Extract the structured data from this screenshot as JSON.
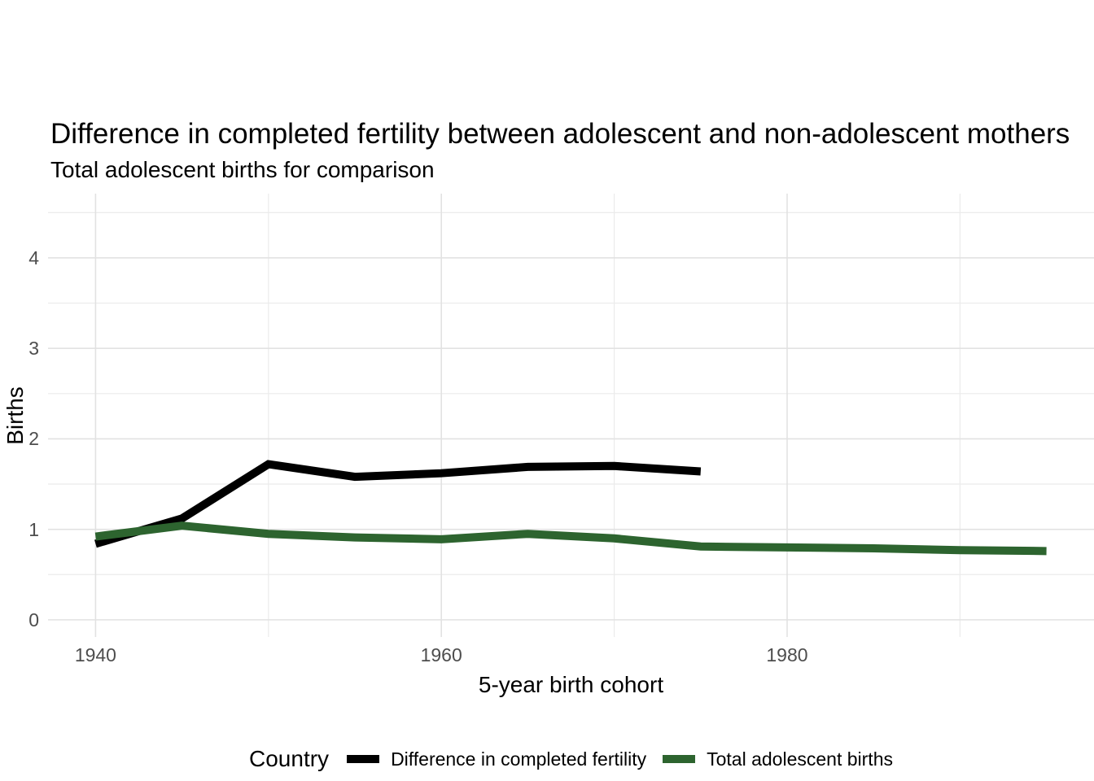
{
  "title": "Difference in completed fertility between adolescent and non-adolescent mothers",
  "subtitle": "Total adolescent births for comparison",
  "chart_data": {
    "type": "line",
    "title": "Difference in completed fertility between adolescent and non-adolescent mothers",
    "subtitle": "Total adolescent births for comparison",
    "xlabel": "5-year birth cohort",
    "ylabel": "Births",
    "xlim": [
      1937.25,
      1997.75
    ],
    "ylim": [
      -0.19,
      4.71
    ],
    "grid": true,
    "x_ticks": {
      "major": [
        1940,
        1960,
        1980
      ],
      "minor": [
        1950,
        1970,
        1990
      ],
      "labels": [
        "1940",
        "1960",
        "1980"
      ]
    },
    "y_ticks": {
      "major": [
        0,
        1,
        2,
        3,
        4
      ],
      "minor": [
        0.5,
        1.5,
        2.5,
        3.5,
        4.5
      ],
      "labels": [
        "0",
        "1",
        "2",
        "3",
        "4"
      ]
    },
    "legend": {
      "title": "Country",
      "position": "bottom"
    },
    "series": [
      {
        "name": "Difference in completed fertility",
        "color": "#000000",
        "x": [
          1940,
          1945,
          1950,
          1955,
          1960,
          1965,
          1970,
          1975
        ],
        "values": [
          0.84,
          1.12,
          1.72,
          1.58,
          1.62,
          1.69,
          1.7,
          1.64
        ]
      },
      {
        "name": "Total adolescent births",
        "color": "#2d642f",
        "x": [
          1940,
          1945,
          1950,
          1955,
          1960,
          1965,
          1970,
          1975,
          1980,
          1985,
          1990,
          1995
        ],
        "values": [
          0.92,
          1.04,
          0.95,
          0.91,
          0.89,
          0.95,
          0.9,
          0.81,
          0.8,
          0.79,
          0.77,
          0.76
        ]
      }
    ],
    "style": {
      "grid_major_color": "#e2e2e2",
      "grid_minor_color": "#ebebeb",
      "tick_label_color": "#4d4d4d",
      "line_width": 10
    }
  }
}
